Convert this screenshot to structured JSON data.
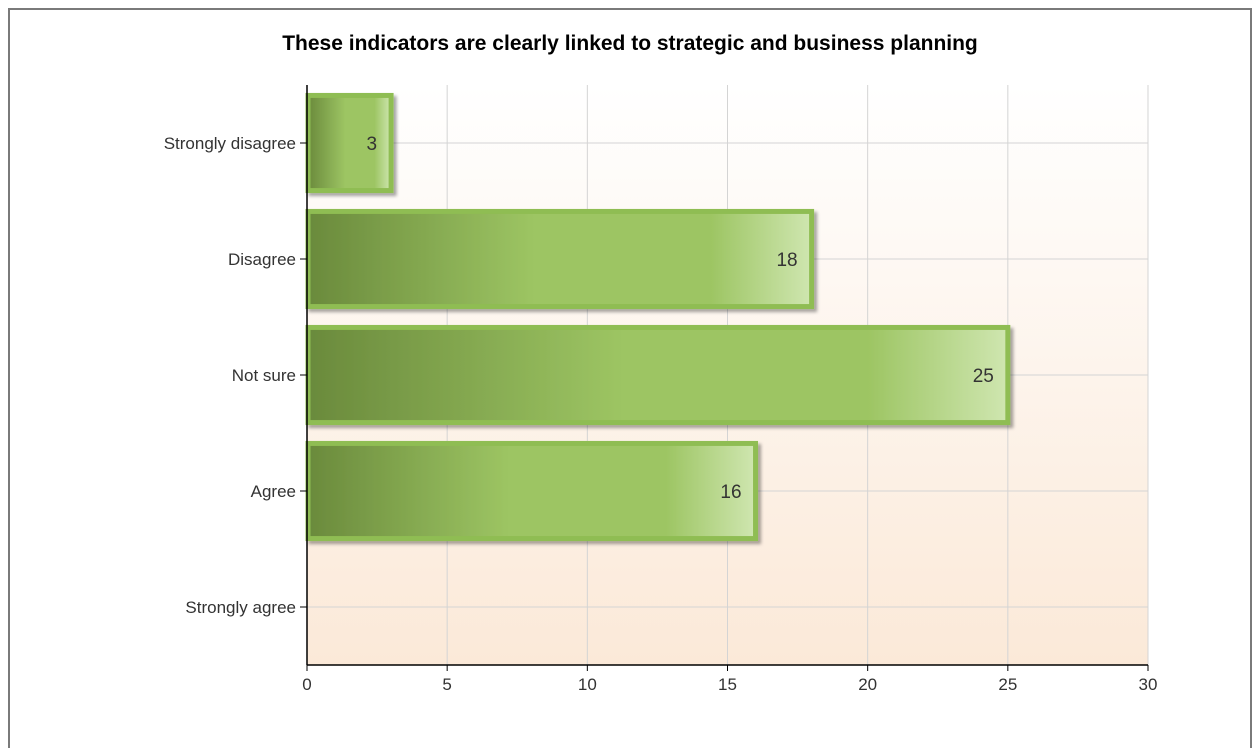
{
  "chart_data": {
    "type": "bar",
    "orientation": "horizontal",
    "title": "These indicators are clearly linked to strategic and business planning",
    "categories": [
      "Strongly disagree",
      "Disagree",
      "Not sure",
      "Agree",
      "Strongly agree"
    ],
    "values": [
      3,
      18,
      25,
      16,
      0
    ],
    "data_labels": [
      "3",
      "18",
      "25",
      "16",
      ""
    ],
    "xlim": [
      0,
      30
    ],
    "xticks": [
      "0",
      "5",
      "10",
      "15",
      "20",
      "25",
      "30"
    ],
    "grid": true,
    "legend": "none",
    "colors": {
      "bar_dark": "#6a8a3c",
      "bar_mid": "#9dc563",
      "bar_light": "#cfe6b0",
      "bar_edge": "#8fbd52",
      "bg_top": "#ffffff",
      "bg_bottom": "#fbe9d8",
      "grid": "#d4d4d4",
      "axis": "#000000"
    }
  }
}
